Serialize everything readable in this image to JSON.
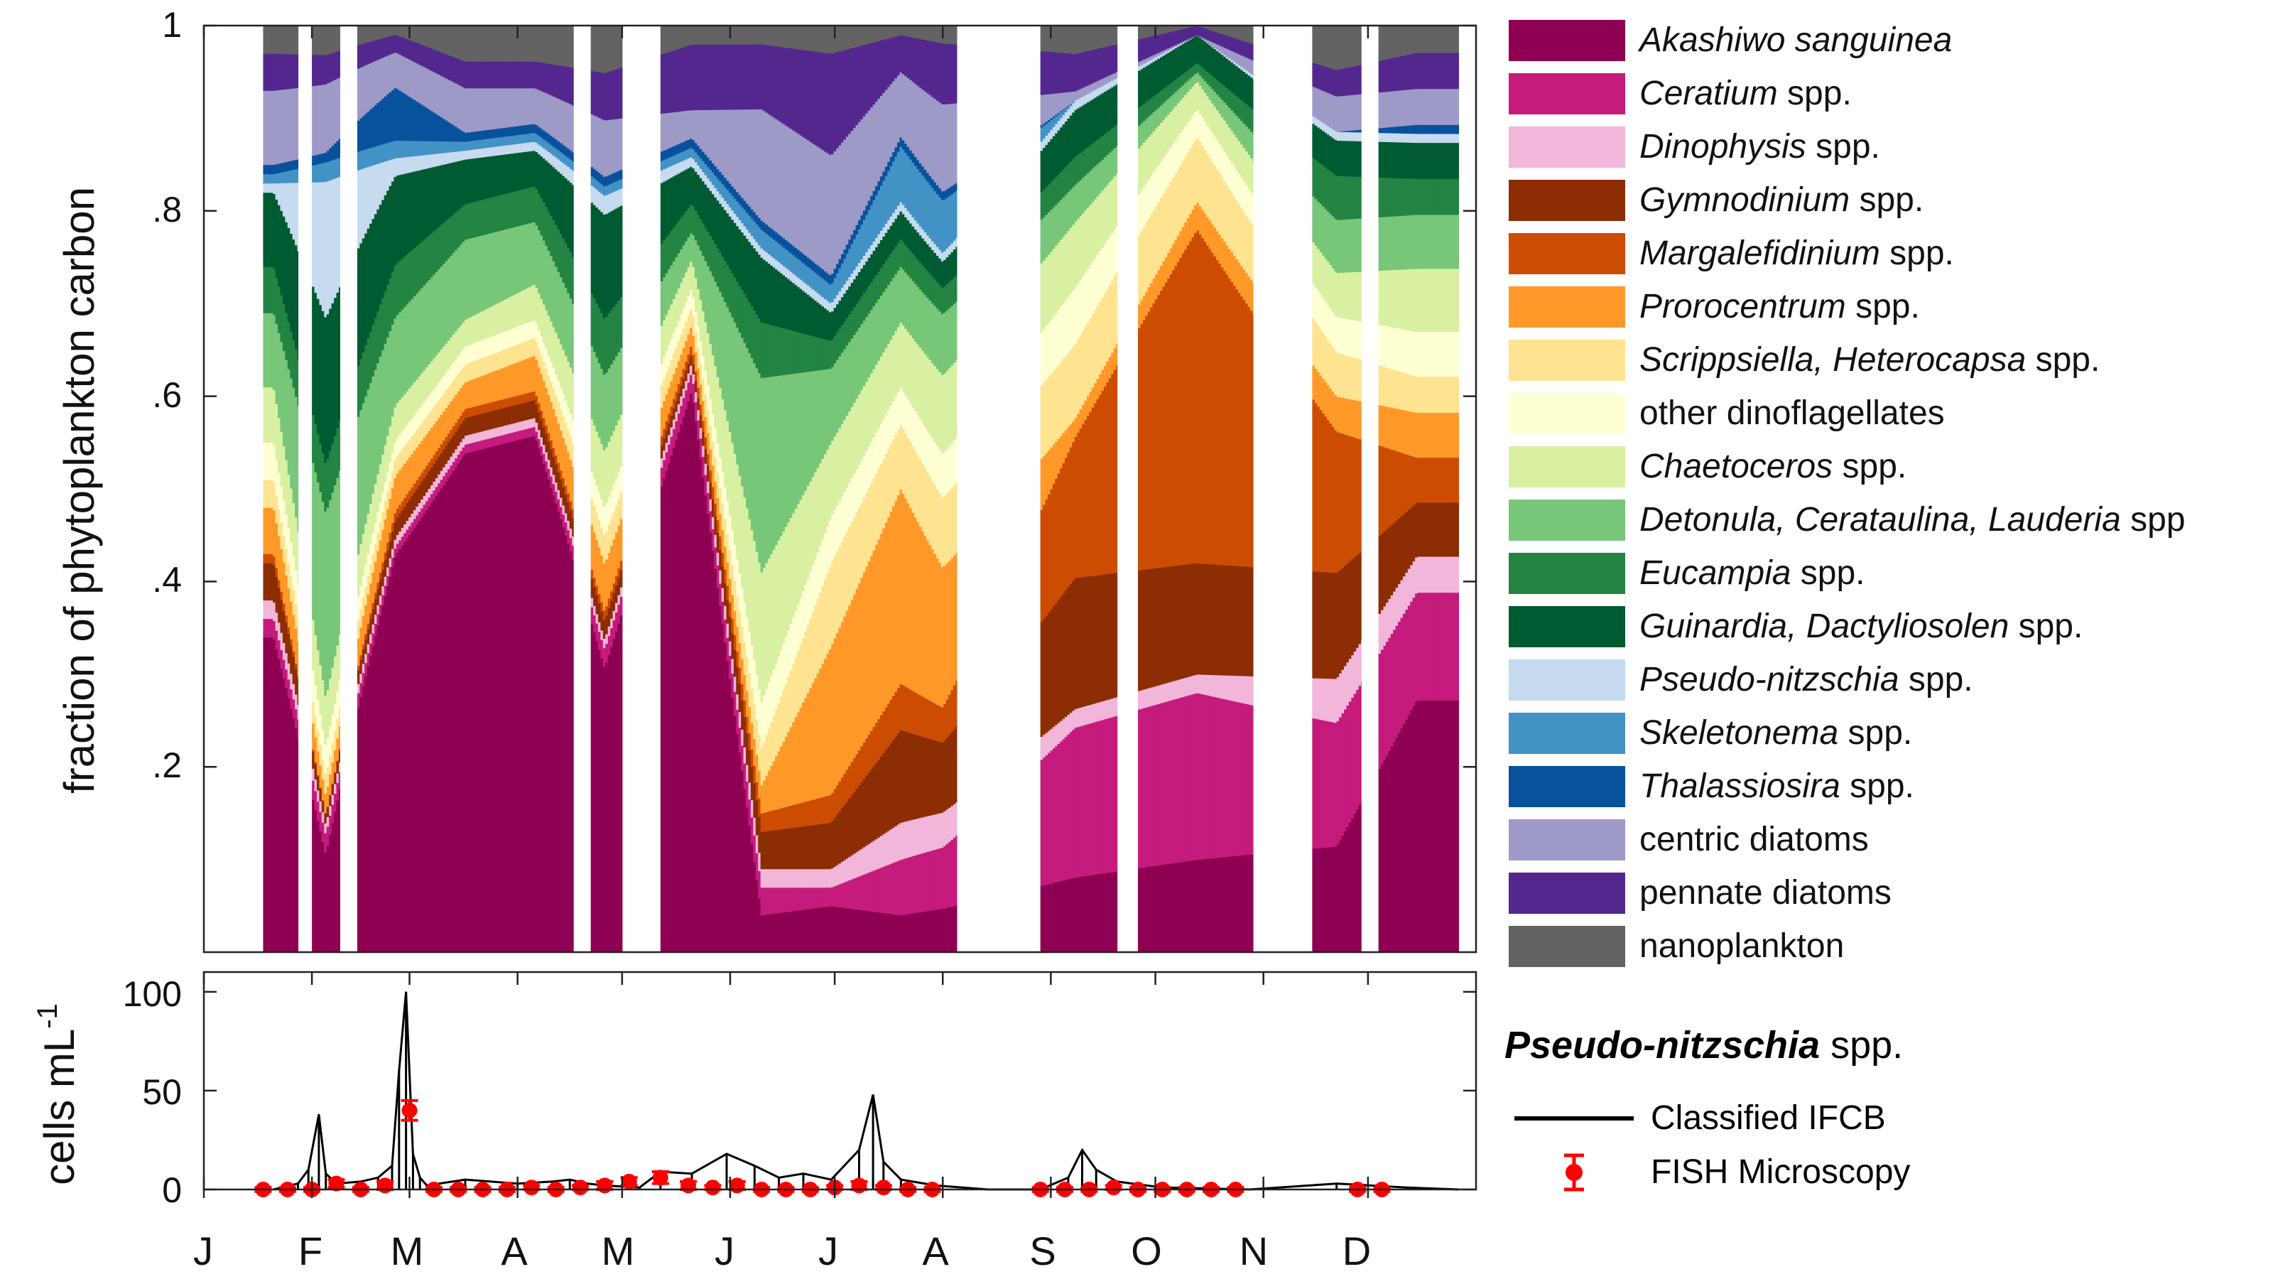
{
  "top_chart": {
    "ylabel": "fraction of phytoplankton carbon",
    "yticks": [
      "1",
      ".8",
      ".6",
      ".4",
      ".2"
    ]
  },
  "bottom_chart": {
    "ylabel_base": "cells mL",
    "ylabel_sup": "-1",
    "yticks": [
      "100",
      "50",
      "0"
    ]
  },
  "months": [
    "J",
    "F",
    "M",
    "A",
    "M",
    "J",
    "J",
    "A",
    "S",
    "O",
    "N",
    "D"
  ],
  "legend": [
    {
      "italic": "Akashiwo sanguinea",
      "rest": "",
      "color": "#8e0152"
    },
    {
      "italic": "Ceratium",
      "rest": " spp.",
      "color": "#c51b7d"
    },
    {
      "italic": "Dinophysis",
      "rest": " spp.",
      "color": "#f1b6da"
    },
    {
      "italic": "Gymnodinium",
      "rest": " spp.",
      "color": "#8c2d04"
    },
    {
      "italic": "Margalefidinium",
      "rest": " spp.",
      "color": "#cc4c02"
    },
    {
      "italic": "Prorocentrum",
      "rest": " spp.",
      "color": "#fe9929"
    },
    {
      "italic": "Scrippsiella, Heterocapsa",
      "rest": " spp.",
      "color": "#fee391"
    },
    {
      "italic": "",
      "rest": "other dinoflagellates",
      "color": "#ffffd4"
    },
    {
      "italic": "Chaetoceros",
      "rest": " spp.",
      "color": "#d9f0a3"
    },
    {
      "italic": "Detonula, Cerataulina, Lauderia",
      "rest": " spp",
      "color": "#78c679"
    },
    {
      "italic": "Eucampia",
      "rest": " spp.",
      "color": "#238443"
    },
    {
      "italic": "Guinardia, Dactyliosolen",
      "rest": " spp.",
      "color": "#005a32"
    },
    {
      "italic": "Pseudo-nitzschia",
      "rest": " spp.",
      "color": "#c6dbef"
    },
    {
      "italic": "Skeletonema",
      "rest": " spp.",
      "color": "#4292c6"
    },
    {
      "italic": "Thalassiosira",
      "rest": " spp.",
      "color": "#08519c"
    },
    {
      "italic": "",
      "rest": "centric diatoms",
      "color": "#9e9ac8"
    },
    {
      "italic": "",
      "rest": "pennate diatoms",
      "color": "#54278f"
    },
    {
      "italic": "",
      "rest": "nanoplankton",
      "color": "#636363"
    }
  ],
  "pseudo_nitzschia": {
    "title_bold": "Pseudo-nitzschia",
    "title_rest": " spp.",
    "legend_line": "Classified IFCB",
    "legend_marker": "FISH Microscopy",
    "line_color": "#000000",
    "marker_color": "#ff0000"
  },
  "chart_data": [
    {
      "type": "area",
      "ylabel": "fraction of phytoplankton carbon",
      "xlabel": "",
      "x_ticks": [
        "J",
        "F",
        "M",
        "A",
        "M",
        "J",
        "J",
        "A",
        "S",
        "O",
        "N",
        "D"
      ],
      "ylim": [
        0,
        1
      ],
      "x_unit": "day of year",
      "xlim": [
        0,
        365
      ],
      "grid": false,
      "legend_position": "right",
      "data_segments": [
        [
          17,
          27
        ],
        [
          31,
          39
        ],
        [
          44,
          106
        ],
        [
          111,
          120
        ],
        [
          131,
          216
        ],
        [
          240,
          262
        ],
        [
          268,
          301
        ],
        [
          318,
          332
        ],
        [
          337,
          360
        ]
      ],
      "series_names": [
        "Akashiwo sanguinea",
        "Ceratium spp.",
        "Dinophysis spp.",
        "Gymnodinium spp.",
        "Margalefidinium spp.",
        "Prorocentrum spp.",
        "Scrippsiella, Heterocapsa spp.",
        "other dinoflagellates",
        "Chaetoceros spp.",
        "Detonula, Cerataulina, Lauderia spp",
        "Eucampia spp.",
        "Guinardia, Dactyliosolen spp.",
        "Pseudo-nitzschia spp.",
        "Skeletonema spp.",
        "Thalassiosira spp.",
        "centric diatoms",
        "pennate diatoms",
        "nanoplankton"
      ],
      "x": [
        20,
        35,
        55,
        75,
        95,
        115,
        140,
        160,
        180,
        200,
        212,
        250,
        285,
        325,
        348
      ],
      "series": [
        {
          "name": "Akashiwo sanguinea",
          "values": [
            0.34,
            0.1,
            0.45,
            0.56,
            0.58,
            0.3,
            0.6,
            0.04,
            0.05,
            0.04,
            0.05,
            0.08,
            0.1,
            0.12,
            0.28
          ]
        },
        {
          "name": "Ceratium spp.",
          "values": [
            0.02,
            0.02,
            0.01,
            0.01,
            0.01,
            0.02,
            0.02,
            0.03,
            0.02,
            0.06,
            0.07,
            0.16,
            0.18,
            0.14,
            0.12
          ]
        },
        {
          "name": "Dinophysis spp.",
          "values": [
            0.02,
            0.01,
            0.01,
            0.01,
            0.01,
            0.01,
            0.01,
            0.02,
            0.02,
            0.04,
            0.04,
            0.02,
            0.02,
            0.05,
            0.04
          ]
        },
        {
          "name": "Gymnodinium spp.",
          "values": [
            0.04,
            0.01,
            0.02,
            0.02,
            0.02,
            0.02,
            0.01,
            0.04,
            0.05,
            0.1,
            0.08,
            0.14,
            0.12,
            0.12,
            0.06
          ]
        },
        {
          "name": "Margalefidinium spp.",
          "values": [
            0.01,
            0.0,
            0.01,
            0.01,
            0.01,
            0.01,
            0.01,
            0.02,
            0.03,
            0.05,
            0.04,
            0.15,
            0.36,
            0.16,
            0.05
          ]
        },
        {
          "name": "Prorocentrum spp.",
          "values": [
            0.05,
            0.02,
            0.04,
            0.03,
            0.04,
            0.05,
            0.02,
            0.03,
            0.16,
            0.21,
            0.16,
            0.02,
            0.03,
            0.04,
            0.05
          ]
        },
        {
          "name": "Scrippsiella, Heterocapsa spp.",
          "values": [
            0.03,
            0.02,
            0.02,
            0.02,
            0.02,
            0.03,
            0.02,
            0.04,
            0.09,
            0.07,
            0.08,
            0.08,
            0.07,
            0.05,
            0.04
          ]
        },
        {
          "name": "other dinoflagellates",
          "values": [
            0.04,
            0.03,
            0.02,
            0.02,
            0.02,
            0.03,
            0.02,
            0.05,
            0.05,
            0.04,
            0.05,
            0.06,
            0.03,
            0.04,
            0.05
          ]
        },
        {
          "name": "Chaetoceros spp.",
          "values": [
            0.06,
            0.05,
            0.04,
            0.03,
            0.04,
            0.06,
            0.03,
            0.14,
            0.08,
            0.07,
            0.09,
            0.07,
            0.03,
            0.05,
            0.07
          ]
        },
        {
          "name": "Detonula, Cerataulina, Lauderia spp",
          "values": [
            0.08,
            0.19,
            0.1,
            0.09,
            0.07,
            0.08,
            0.03,
            0.21,
            0.08,
            0.06,
            0.07,
            0.04,
            0.01,
            0.06,
            0.06
          ]
        },
        {
          "name": "Eucampia spp.",
          "values": [
            0.05,
            0.05,
            0.06,
            0.04,
            0.04,
            0.06,
            0.03,
            0.06,
            0.03,
            0.03,
            0.03,
            0.03,
            0.01,
            0.05,
            0.04
          ]
        },
        {
          "name": "Guinardia, Dactyliosolen spp.",
          "values": [
            0.08,
            0.15,
            0.1,
            0.05,
            0.04,
            0.11,
            0.04,
            0.07,
            0.03,
            0.03,
            0.03,
            0.05,
            0.03,
            0.04,
            0.04
          ]
        },
        {
          "name": "Pseudo-nitzschia spp.",
          "values": [
            0.01,
            0.14,
            0.02,
            0.01,
            0.01,
            0.02,
            0.01,
            0.01,
            0.01,
            0.01,
            0.01,
            0.01,
            0.0,
            0.01,
            0.01
          ]
        },
        {
          "name": "Skeletonema spp.",
          "values": [
            0.01,
            0.02,
            0.02,
            0.01,
            0.01,
            0.01,
            0.01,
            0.02,
            0.02,
            0.06,
            0.06,
            0.0,
            0.0,
            0.0,
            0.0
          ]
        },
        {
          "name": "Thalassiosira spp.",
          "values": [
            0.01,
            0.01,
            0.06,
            0.01,
            0.01,
            0.01,
            0.01,
            0.01,
            0.01,
            0.01,
            0.01,
            0.0,
            0.0,
            0.0,
            0.01
          ]
        },
        {
          "name": "centric diatoms",
          "values": [
            0.08,
            0.07,
            0.04,
            0.05,
            0.04,
            0.06,
            0.03,
            0.12,
            0.13,
            0.07,
            0.1,
            0.01,
            0.0,
            0.04,
            0.04
          ]
        },
        {
          "name": "pennate diatoms",
          "values": [
            0.04,
            0.03,
            0.02,
            0.03,
            0.03,
            0.05,
            0.07,
            0.07,
            0.11,
            0.04,
            0.07,
            0.04,
            0.01,
            0.03,
            0.04
          ]
        },
        {
          "name": "nanoplankton",
          "values": [
            0.03,
            0.03,
            0.01,
            0.04,
            0.04,
            0.05,
            0.02,
            0.02,
            0.03,
            0.01,
            0.02,
            0.03,
            0.0,
            0.05,
            0.03
          ]
        }
      ]
    },
    {
      "type": "line",
      "ylabel": "cells mL-1",
      "xlabel": "",
      "x_ticks": [
        "J",
        "F",
        "M",
        "A",
        "M",
        "J",
        "J",
        "A",
        "S",
        "O",
        "N",
        "D"
      ],
      "x_unit": "day of year",
      "xlim": [
        0,
        365
      ],
      "ylim": [
        0,
        110
      ],
      "yticks": [
        0,
        50,
        100
      ],
      "grid": false,
      "legend_position": "right",
      "series": [
        {
          "name": "Classified IFCB",
          "x": [
            20,
            27,
            30,
            33,
            35,
            38,
            45,
            50,
            54,
            56,
            58,
            60,
            62,
            64,
            75,
            90,
            100,
            105,
            110,
            115,
            125,
            131,
            140,
            150,
            158,
            165,
            172,
            180,
            188,
            192,
            195,
            200,
            210,
            225,
            240,
            248,
            252,
            256,
            262,
            275,
            300,
            325,
            345,
            360
          ],
          "y": [
            0,
            3,
            10,
            38,
            8,
            3,
            4,
            6,
            12,
            60,
            100,
            18,
            6,
            2,
            5,
            3,
            4,
            5,
            3,
            2,
            1,
            9,
            8,
            18,
            12,
            6,
            8,
            5,
            20,
            48,
            14,
            5,
            2,
            0,
            0,
            6,
            20,
            10,
            4,
            1,
            0,
            3,
            1,
            0
          ]
        },
        {
          "name": "FISH Microscopy",
          "x": [
            17,
            24,
            31,
            38,
            45,
            52,
            59,
            66,
            73,
            80,
            87,
            94,
            101,
            108,
            115,
            122,
            131,
            139,
            146,
            153,
            160,
            167,
            174,
            181,
            188,
            195,
            202,
            209,
            240,
            247,
            254,
            261,
            268,
            275,
            282,
            289,
            296,
            331,
            338
          ],
          "y": [
            0,
            0,
            0,
            3,
            0,
            2,
            40,
            0,
            0,
            0,
            0,
            1,
            0,
            1,
            2,
            4,
            6,
            2,
            1,
            2,
            0,
            0,
            0,
            1,
            2,
            1,
            0,
            0,
            0,
            0,
            0,
            1,
            0,
            0,
            0,
            0,
            0,
            0,
            0
          ],
          "yerr": [
            1,
            1,
            1,
            2,
            1,
            2,
            5,
            1,
            1,
            1,
            1,
            1,
            1,
            1,
            2,
            2,
            3,
            2,
            1,
            2,
            1,
            1,
            1,
            1,
            2,
            1,
            1,
            1,
            1,
            1,
            1,
            1,
            1,
            1,
            1,
            1,
            1,
            1,
            1
          ]
        }
      ]
    }
  ]
}
